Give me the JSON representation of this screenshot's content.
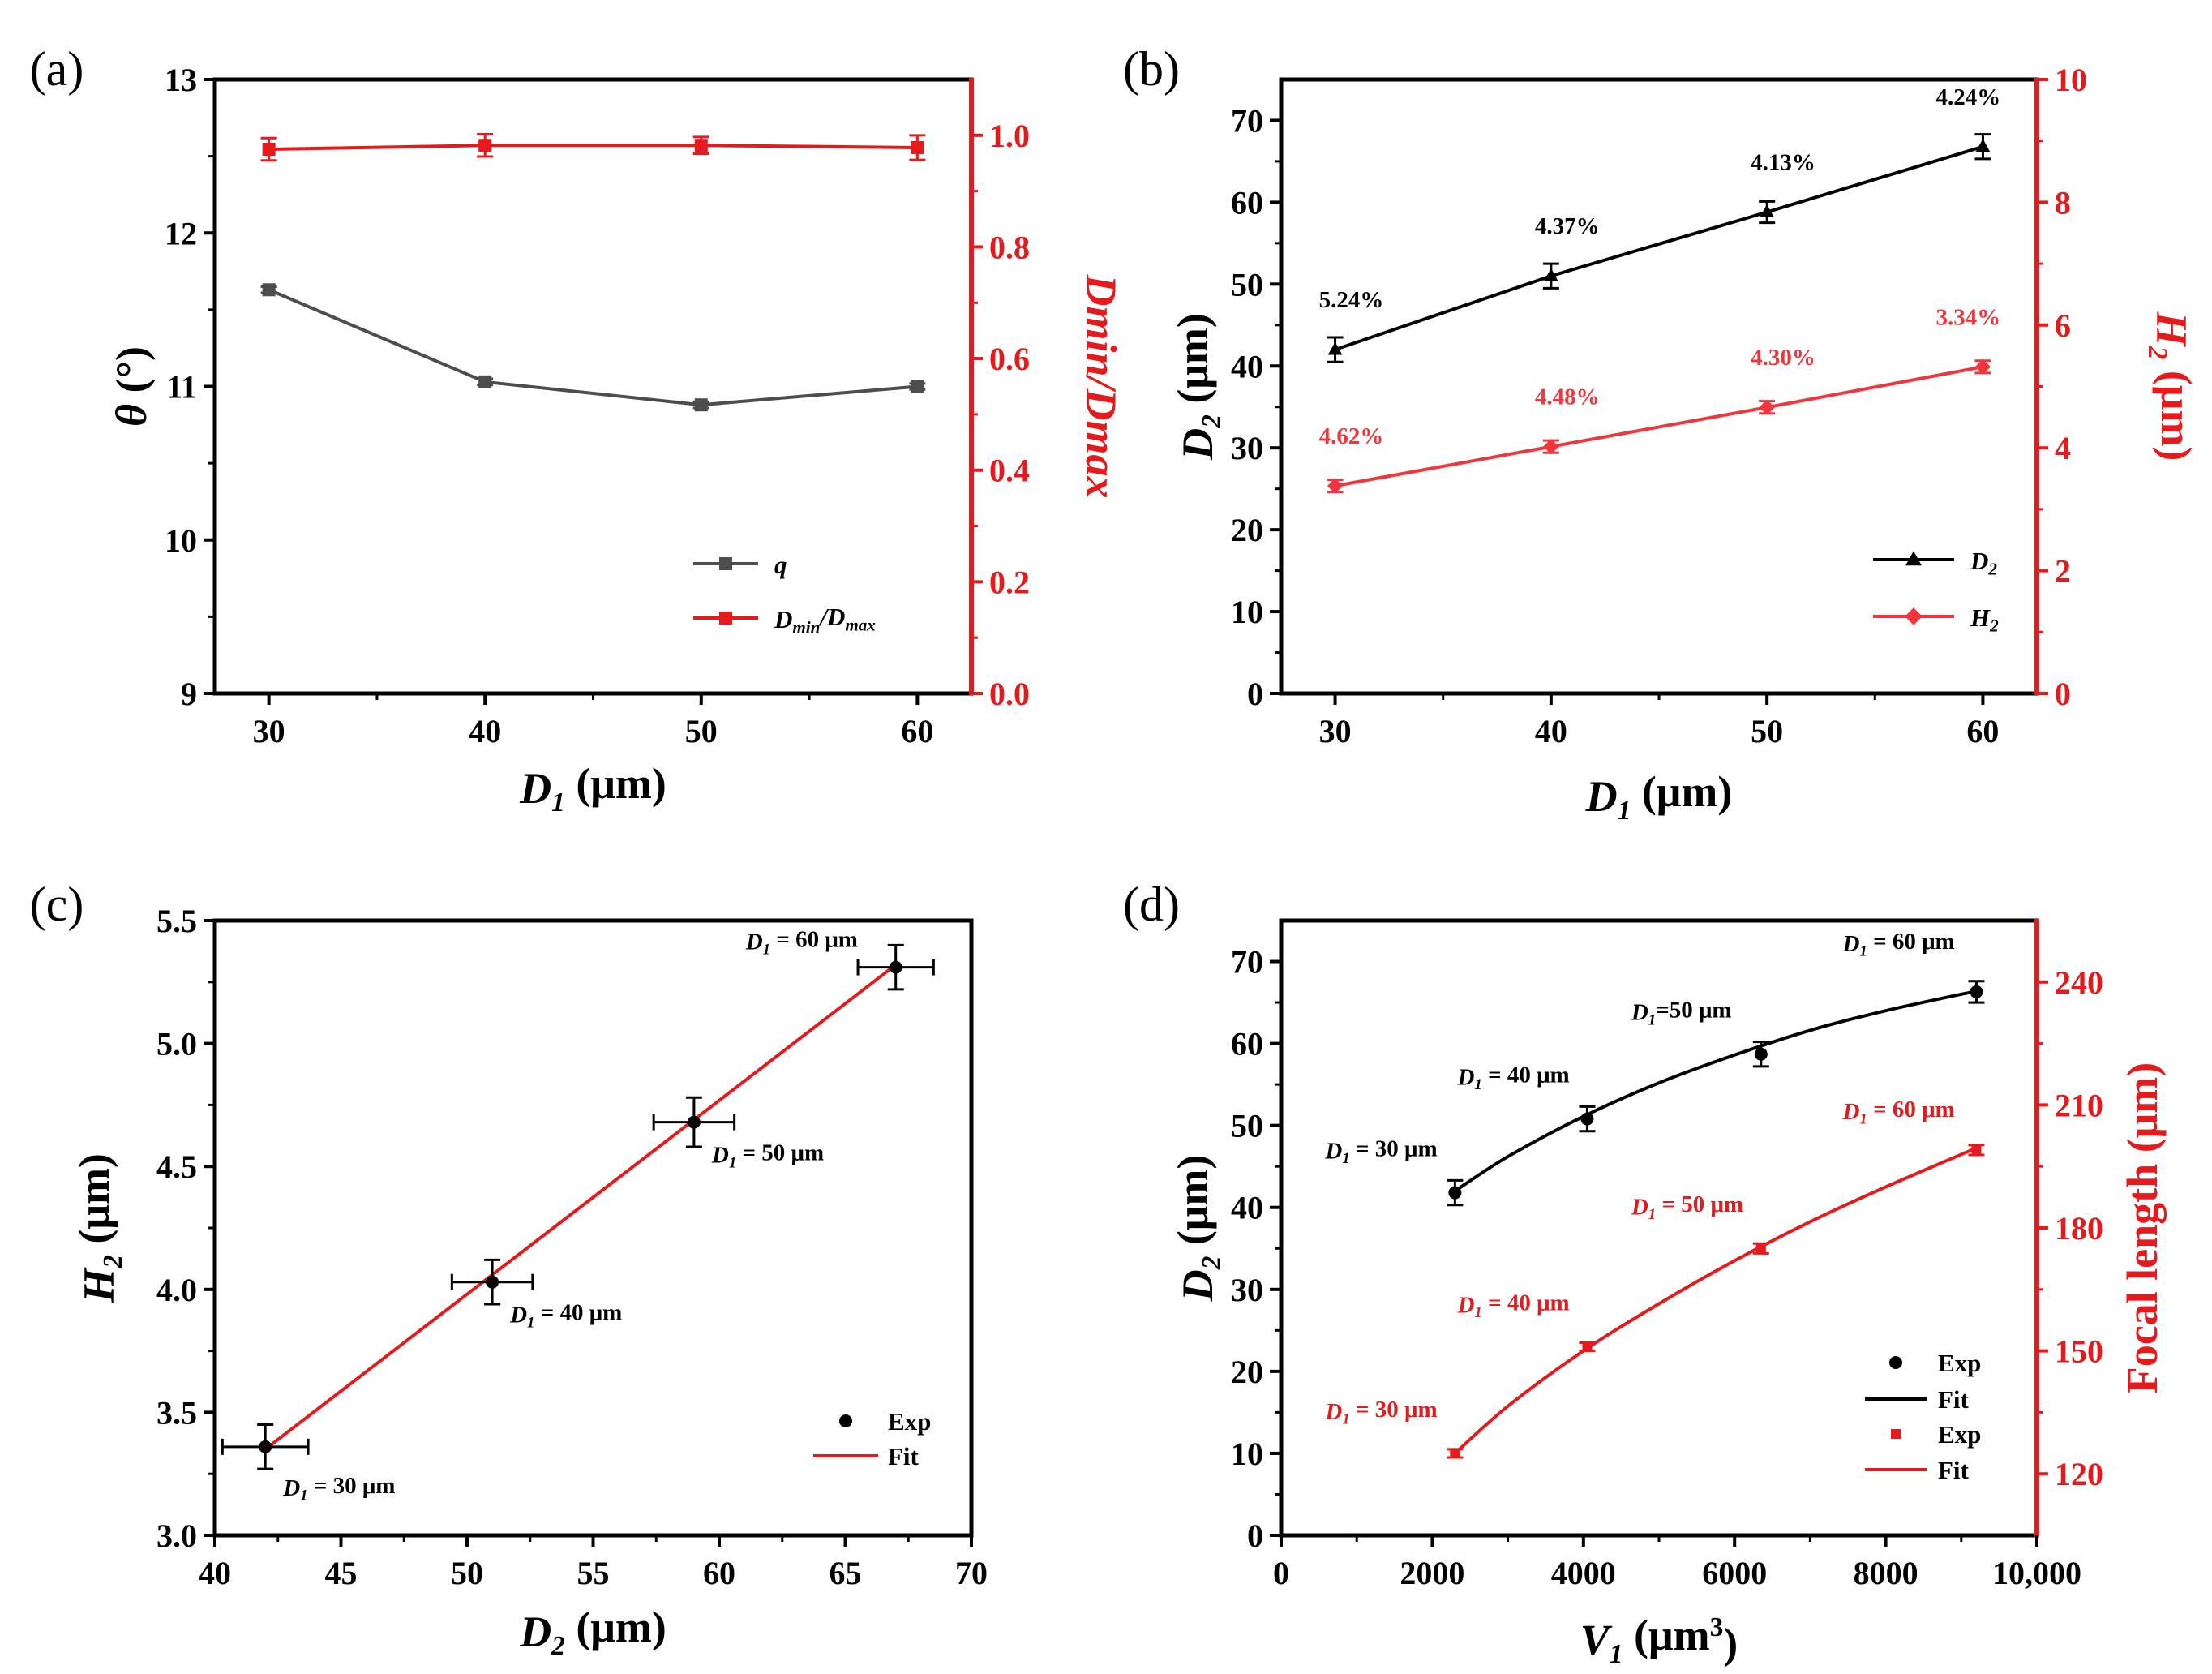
{
  "chart_data": [
    {
      "panel": "(a)",
      "type": "line",
      "x": [
        30,
        40,
        50,
        60
      ],
      "xlim": [
        27.5,
        62.5
      ],
      "xticks": [
        30,
        40,
        50,
        60
      ],
      "xlabel": {
        "var": "D",
        "sub": "1",
        "unit": " (μm)"
      },
      "ylabel_left": {
        "var": "θ",
        "unit": " (°)"
      },
      "ylim_left": [
        9,
        13
      ],
      "yticks_left": [
        9,
        10,
        11,
        12,
        13
      ],
      "ylabel_right": "Dmin/Dmax",
      "ylim_right": [
        0,
        1.1
      ],
      "yticks_right": [
        0.0,
        0.2,
        0.4,
        0.6,
        0.8,
        1.0
      ],
      "right_axis_color": "#e41a1c",
      "grid": false,
      "legend_position": "bottom-right",
      "series": [
        {
          "name": "q",
          "axis": "left",
          "color": "#4d4d4d",
          "marker": "square",
          "values": [
            11.63,
            11.03,
            10.88,
            11.0
          ],
          "errors": [
            0.02,
            0.02,
            0.02,
            0.02
          ]
        },
        {
          "name": "Dmin/Dmax",
          "legend_var": "D",
          "legend_sub1": "min",
          "legend_mid": "/D",
          "legend_sub2": "max",
          "axis": "right",
          "color": "#e41a1c",
          "marker": "square",
          "values": [
            0.975,
            0.982,
            0.982,
            0.978
          ],
          "errors": [
            0.02,
            0.02,
            0.015,
            0.022
          ]
        }
      ]
    },
    {
      "panel": "(b)",
      "type": "line",
      "x": [
        30,
        40,
        50,
        60
      ],
      "xlim": [
        27.5,
        62.5
      ],
      "xticks": [
        30,
        40,
        50,
        60
      ],
      "xlabel": {
        "var": "D",
        "sub": "1",
        "unit": " (μm)"
      },
      "ylabel_left": {
        "var": "D",
        "sub": "2",
        "unit": " (μm)"
      },
      "ylim_left": [
        0,
        75
      ],
      "yticks_left": [
        0,
        10,
        20,
        30,
        40,
        50,
        60,
        70
      ],
      "ylabel_right": {
        "var": "H",
        "sub": "2",
        "unit": " (μm)"
      },
      "ylim_right": [
        0,
        10
      ],
      "yticks_right": [
        0,
        2,
        4,
        6,
        8,
        10
      ],
      "right_axis_color": "#e41a1c",
      "grid": false,
      "legend_position": "bottom-right",
      "series": [
        {
          "name": "D2",
          "legend_var": "D",
          "legend_sub": "2",
          "axis": "left",
          "color": "#000000",
          "marker": "triangle",
          "values": [
            42.0,
            51.0,
            58.8,
            66.8
          ],
          "errors": [
            1.5,
            1.5,
            1.3,
            1.5
          ],
          "labels": [
            "5.24%",
            "4.37%",
            "4.13%",
            "4.24%"
          ]
        },
        {
          "name": "H2",
          "legend_var": "H",
          "legend_sub": "2",
          "axis": "right",
          "color": "#f0363c",
          "marker": "diamond",
          "values": [
            3.38,
            4.02,
            4.66,
            5.32
          ],
          "errors": [
            0.1,
            0.1,
            0.1,
            0.1
          ],
          "labels": [
            "4.62%",
            "4.48%",
            "4.30%",
            "3.34%"
          ]
        }
      ]
    },
    {
      "panel": "(c)",
      "type": "scatter",
      "xlabel": {
        "var": "D",
        "sub": "2",
        "unit": " (μm)"
      },
      "ylabel": {
        "var": "H",
        "sub": "2",
        "unit": " (μm)"
      },
      "xlim": [
        40,
        70
      ],
      "xticks": [
        40,
        45,
        50,
        55,
        60,
        65,
        70
      ],
      "ylim": [
        3.0,
        5.5
      ],
      "yticks": [
        "3.0",
        "3.5",
        "4.0",
        "4.5",
        "5.0",
        "5.5"
      ],
      "grid": false,
      "legend_position": "bottom-right",
      "exp": {
        "name": "Exp",
        "x": [
          42.0,
          51.0,
          59.0,
          67.0
        ],
        "y": [
          3.36,
          4.03,
          4.68,
          5.31
        ],
        "xerr": [
          1.7,
          1.6,
          1.6,
          1.5
        ],
        "yerr": [
          0.09,
          0.09,
          0.1,
          0.09
        ],
        "color": "#000000"
      },
      "fit": {
        "name": "Fit",
        "x": [
          42.0,
          67.0
        ],
        "y": [
          3.35,
          5.32
        ],
        "color": "#e41a1c"
      },
      "annotations": [
        {
          "var": "D",
          "sub": "1",
          "text": " = 30 μm"
        },
        {
          "var": "D",
          "sub": "1",
          "text": " = 40 μm"
        },
        {
          "var": "D",
          "sub": "1",
          "text": " = 50 μm"
        },
        {
          "var": "D",
          "sub": "1",
          "text": " = 60 μm"
        }
      ]
    },
    {
      "panel": "(d)",
      "type": "scatter",
      "xlabel": {
        "var": "V",
        "sub": "1",
        "unit": " (μm",
        "sup": "3",
        "unit_end": ")"
      },
      "xlim": [
        0,
        10000
      ],
      "xticks": [
        "0",
        "2000",
        "4000",
        "6000",
        "8000",
        "10,000"
      ],
      "ylabel_left": {
        "var": "D",
        "sub": "2",
        "unit": " (μm)"
      },
      "ylim_left": [
        0,
        75
      ],
      "yticks_left": [
        0,
        10,
        20,
        30,
        40,
        50,
        60,
        70
      ],
      "ylabel_right": "Focal length (μm)",
      "ylim_right": [
        105,
        255
      ],
      "yticks_right": [
        120,
        150,
        180,
        210,
        240
      ],
      "right_axis_color": "#e41a1c",
      "grid": false,
      "legend_position": "bottom-right",
      "series": [
        {
          "name": "Exp",
          "axis": "left",
          "color": "#000000",
          "marker": "circle",
          "x": [
            2300,
            4050,
            6350,
            9200
          ],
          "values": [
            41.8,
            50.8,
            58.7,
            66.3
          ],
          "errors": [
            1.5,
            1.5,
            1.5,
            1.3
          ],
          "fit_name": "Fit",
          "fit_x": [
            2300,
            3000,
            4000,
            5000,
            6000,
            7000,
            8000,
            9200
          ],
          "fit_values": [
            42.0,
            46.2,
            51.1,
            55.2,
            58.6,
            61.6,
            64.0,
            66.4
          ],
          "annotations": [
            {
              "var": "D",
              "sub": "1",
              "text": " = 30 μm"
            },
            {
              "var": "D",
              "sub": "1",
              "text": " = 40 μm"
            },
            {
              "var": "D",
              "sub": "1",
              "text": "=50 μm"
            },
            {
              "var": "D",
              "sub": "1",
              "text": " = 60 μm"
            }
          ]
        },
        {
          "name": "Exp",
          "axis": "right",
          "color": "#e41a1c",
          "marker": "square",
          "x": [
            2300,
            4050,
            6350,
            9200
          ],
          "values": [
            125.0,
            151.0,
            175.0,
            199.0
          ],
          "errors": [
            1.0,
            1.0,
            1.2,
            1.2
          ],
          "fit_name": "Fit",
          "fit_x": [
            2300,
            3000,
            4000,
            5000,
            6000,
            7000,
            8000,
            9200
          ],
          "fit_values": [
            125.0,
            136.5,
            150.0,
            161.5,
            172.0,
            181.5,
            190.0,
            199.5
          ],
          "annotations": [
            {
              "var": "D",
              "sub": "1",
              "text": " = 30 μm"
            },
            {
              "var": "D",
              "sub": "1",
              "text": " = 40 μm"
            },
            {
              "var": "D",
              "sub": "1",
              "text": " = 50 μm"
            },
            {
              "var": "D",
              "sub": "1",
              "text": " = 60 μm"
            }
          ]
        }
      ]
    }
  ]
}
